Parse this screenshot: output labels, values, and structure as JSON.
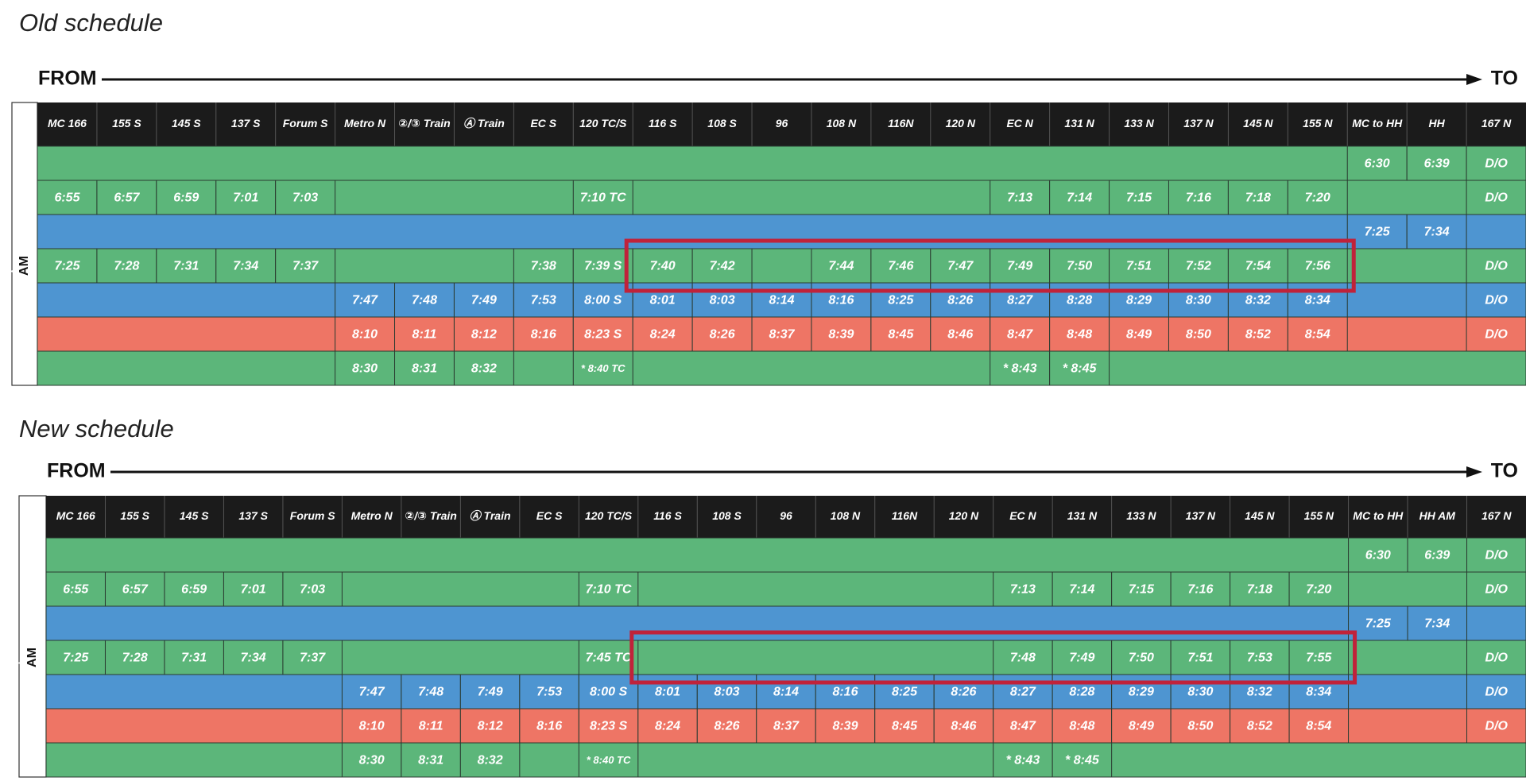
{
  "schedules": [
    {
      "title": "Old schedule",
      "from": "FROM",
      "to": "TO",
      "side_label": "AM",
      "columns": [
        "MC 166",
        "155 S",
        "145 S",
        "137 S",
        "Forum S",
        "Metro N",
        "②/③ Train",
        "Ⓐ Train",
        "EC S",
        "120 TC/S",
        "116 S",
        "108 S",
        "96",
        "108 N",
        "116N",
        "120 N",
        "EC N",
        "131 N",
        "133 N",
        "137 N",
        "145 N",
        "155 N",
        "MC to HH",
        "HH",
        "167 N"
      ],
      "rows": [
        {
          "color": "#5cb67a",
          "cells": [
            null,
            null,
            null,
            null,
            null,
            null,
            null,
            null,
            null,
            null,
            null,
            null,
            null,
            null,
            null,
            null,
            null,
            null,
            null,
            null,
            null,
            null,
            "6:30",
            "6:39",
            "D/O"
          ]
        },
        {
          "color": "#5cb67a",
          "cells": [
            "6:55",
            "6:57",
            "6:59",
            "7:01",
            "7:03",
            null,
            null,
            null,
            null,
            "7:10 TC",
            null,
            null,
            null,
            null,
            null,
            null,
            "7:13",
            "7:14",
            "7:15",
            "7:16",
            "7:18",
            "7:20",
            null,
            null,
            "D/O"
          ]
        },
        {
          "color": "#4e95d1",
          "cells": [
            null,
            null,
            null,
            null,
            null,
            null,
            null,
            null,
            null,
            null,
            null,
            null,
            null,
            null,
            null,
            null,
            null,
            null,
            null,
            null,
            null,
            null,
            "7:25",
            "7:34",
            null
          ]
        },
        {
          "color": "#5cb67a",
          "cells": [
            "7:25",
            "7:28",
            "7:31",
            "7:34",
            "7:37",
            null,
            null,
            null,
            "7:38",
            "7:39 S",
            "7:40",
            "7:42",
            null,
            "7:44",
            "7:46",
            "7:47",
            "7:49",
            "7:50",
            "7:51",
            "7:52",
            "7:54",
            "7:56",
            null,
            null,
            "D/O"
          ]
        },
        {
          "color": "#4e95d1",
          "cells": [
            null,
            null,
            null,
            null,
            null,
            "7:47",
            "7:48",
            "7:49",
            "7:53",
            "8:00 S",
            "8:01",
            "8:03",
            "8:14",
            "8:16",
            "8:25",
            "8:26",
            "8:27",
            "8:28",
            "8:29",
            "8:30",
            "8:32",
            "8:34",
            null,
            null,
            "D/O"
          ]
        },
        {
          "color": "#ee7565",
          "cells": [
            null,
            null,
            null,
            null,
            null,
            "8:10",
            "8:11",
            "8:12",
            "8:16",
            "8:23 S",
            "8:24",
            "8:26",
            "8:37",
            "8:39",
            "8:45",
            "8:46",
            "8:47",
            "8:48",
            "8:49",
            "8:50",
            "8:52",
            "8:54",
            null,
            null,
            "D/O"
          ]
        },
        {
          "color": "#5cb67a",
          "cells": [
            null,
            null,
            null,
            null,
            null,
            "8:30",
            "8:31",
            "8:32",
            null,
            "* 8:40 TC",
            null,
            null,
            null,
            null,
            null,
            null,
            "* 8:43",
            "* 8:45",
            null,
            null,
            null,
            null,
            null,
            null,
            null
          ]
        }
      ]
    },
    {
      "title": "New schedule",
      "from": "FROM",
      "to": "TO",
      "side_label": "AM",
      "columns": [
        "MC 166",
        "155 S",
        "145 S",
        "137 S",
        "Forum S",
        "Metro N",
        "②/③ Train",
        "Ⓐ Train",
        "EC S",
        "120 TC/S",
        "116 S",
        "108 S",
        "96",
        "108 N",
        "116N",
        "120 N",
        "EC N",
        "131 N",
        "133 N",
        "137 N",
        "145 N",
        "155 N",
        "MC to HH",
        "HH AM",
        "167 N"
      ],
      "rows": [
        {
          "color": "#5cb67a",
          "cells": [
            null,
            null,
            null,
            null,
            null,
            null,
            null,
            null,
            null,
            null,
            null,
            null,
            null,
            null,
            null,
            null,
            null,
            null,
            null,
            null,
            null,
            null,
            "6:30",
            "6:39",
            "D/O"
          ]
        },
        {
          "color": "#5cb67a",
          "cells": [
            "6:55",
            "6:57",
            "6:59",
            "7:01",
            "7:03",
            null,
            null,
            null,
            null,
            "7:10 TC",
            null,
            null,
            null,
            null,
            null,
            null,
            "7:13",
            "7:14",
            "7:15",
            "7:16",
            "7:18",
            "7:20",
            null,
            null,
            "D/O"
          ]
        },
        {
          "color": "#4e95d1",
          "cells": [
            null,
            null,
            null,
            null,
            null,
            null,
            null,
            null,
            null,
            null,
            null,
            null,
            null,
            null,
            null,
            null,
            null,
            null,
            null,
            null,
            null,
            null,
            "7:25",
            "7:34",
            null
          ]
        },
        {
          "color": "#5cb67a",
          "cells": [
            "7:25",
            "7:28",
            "7:31",
            "7:34",
            "7:37",
            null,
            null,
            null,
            null,
            "7:45 TC",
            null,
            null,
            null,
            null,
            null,
            null,
            "7:48",
            "7:49",
            "7:50",
            "7:51",
            "7:53",
            "7:55",
            null,
            null,
            "D/O"
          ]
        },
        {
          "color": "#4e95d1",
          "cells": [
            null,
            null,
            null,
            null,
            null,
            "7:47",
            "7:48",
            "7:49",
            "7:53",
            "8:00 S",
            "8:01",
            "8:03",
            "8:14",
            "8:16",
            "8:25",
            "8:26",
            "8:27",
            "8:28",
            "8:29",
            "8:30",
            "8:32",
            "8:34",
            null,
            null,
            "D/O"
          ]
        },
        {
          "color": "#ee7565",
          "cells": [
            null,
            null,
            null,
            null,
            null,
            "8:10",
            "8:11",
            "8:12",
            "8:16",
            "8:23 S",
            "8:24",
            "8:26",
            "8:37",
            "8:39",
            "8:45",
            "8:46",
            "8:47",
            "8:48",
            "8:49",
            "8:50",
            "8:52",
            "8:54",
            null,
            null,
            "D/O"
          ]
        },
        {
          "color": "#5cb67a",
          "cells": [
            null,
            null,
            null,
            null,
            null,
            "8:30",
            "8:31",
            "8:32",
            null,
            "* 8:40 TC",
            null,
            null,
            null,
            null,
            null,
            null,
            "* 8:43",
            "* 8:45",
            null,
            null,
            null,
            null,
            null,
            null,
            null
          ]
        }
      ]
    }
  ]
}
